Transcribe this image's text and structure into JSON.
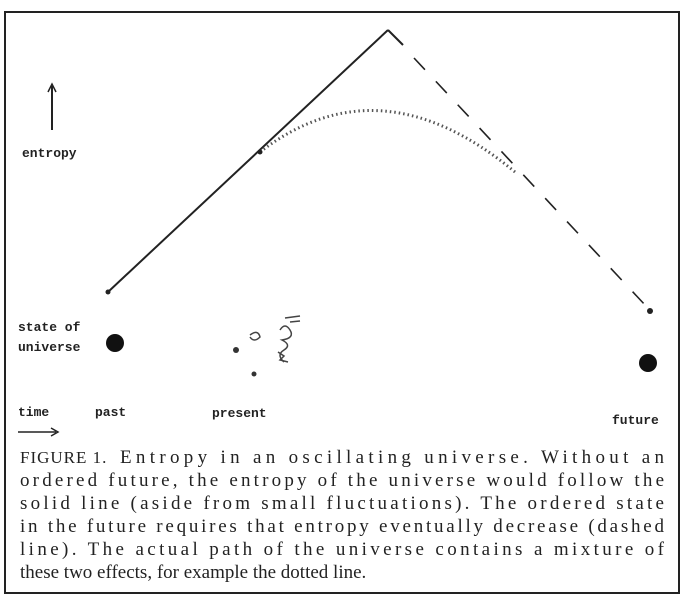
{
  "labels": {
    "entropy": "entropy",
    "state_line1": "state of",
    "state_line2": "universe",
    "time": "time",
    "past": "past",
    "present": "present",
    "future": "future"
  },
  "caption": {
    "label": "FIGURE 1.",
    "lines": [
      "Entropy in an oscillating universe. Without an",
      "ordered future, the entropy of the universe would follow the",
      "solid line (aside from small fluctuations). The ordered state",
      "in the future requires that entropy eventually decrease (dashed",
      "line). The actual path of the universe contains a mixture of",
      "these two effects, for example the dotted line."
    ]
  }
}
